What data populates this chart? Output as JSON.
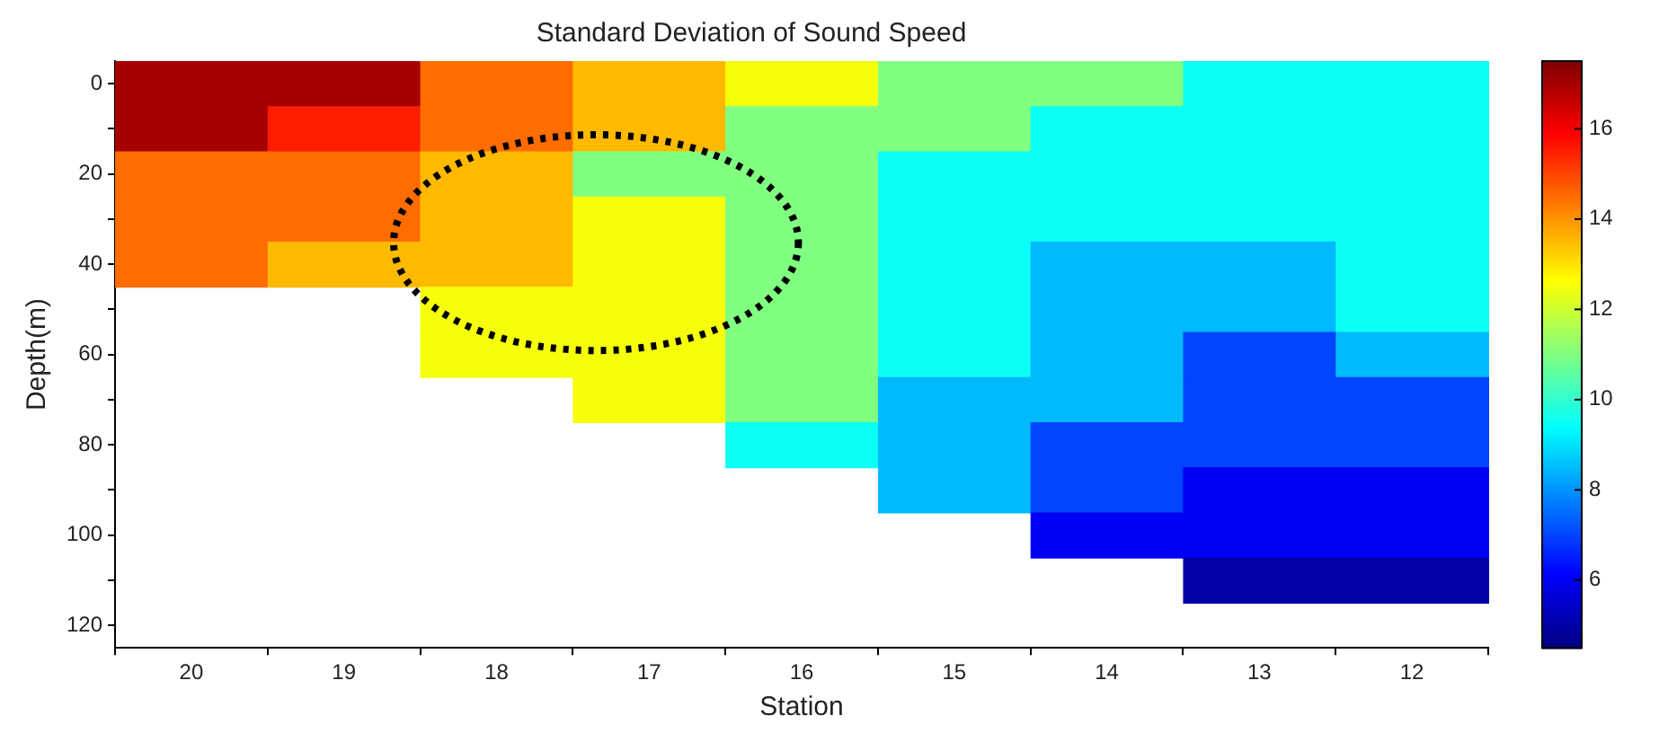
{
  "chart_data": {
    "type": "heatmap",
    "title": "Standard Deviation of Sound Speed",
    "xlabel": "Station",
    "ylabel": "Depth(m)",
    "categories": [
      "20",
      "19",
      "18",
      "17",
      "16",
      "15",
      "14",
      "13",
      "12"
    ],
    "y_categories": [
      "0",
      null,
      "20",
      null,
      "40",
      null,
      "60",
      null,
      "80",
      null,
      "100",
      null,
      "120"
    ],
    "cells": [
      [
        17,
        17,
        14.5,
        13.5,
        12.5,
        11,
        11,
        9.5,
        9.5
      ],
      [
        17,
        15.5,
        14.5,
        13.5,
        11,
        11,
        9.5,
        9.5,
        9.5
      ],
      [
        14.5,
        14.5,
        13.5,
        11,
        11,
        9.5,
        9.5,
        9.5,
        9.5
      ],
      [
        14.5,
        14.5,
        13.5,
        12.5,
        11,
        9.5,
        9.5,
        9.5,
        9.5
      ],
      [
        14.5,
        13.5,
        13.5,
        12.5,
        11,
        9.5,
        8.5,
        8.5,
        9.5
      ],
      [
        null,
        null,
        12.5,
        12.5,
        11,
        9.5,
        8.5,
        8.5,
        9.5
      ],
      [
        null,
        null,
        12.5,
        12.5,
        11,
        9.5,
        8.5,
        7,
        8.5
      ],
      [
        null,
        null,
        null,
        12.5,
        11,
        8.5,
        8.5,
        7,
        7
      ],
      [
        null,
        null,
        null,
        null,
        9.5,
        8.5,
        7,
        7,
        7
      ],
      [
        null,
        null,
        null,
        null,
        null,
        8.5,
        7,
        6,
        6
      ],
      [
        null,
        null,
        null,
        null,
        null,
        null,
        6,
        6,
        6
      ],
      [
        null,
        null,
        null,
        null,
        null,
        null,
        null,
        5,
        5
      ],
      [
        null,
        null,
        null,
        null,
        null,
        null,
        null,
        null,
        null
      ]
    ],
    "clim": [
      4.5,
      17.5
    ],
    "cticks": [
      6,
      8,
      10,
      12,
      14,
      16
    ]
  }
}
